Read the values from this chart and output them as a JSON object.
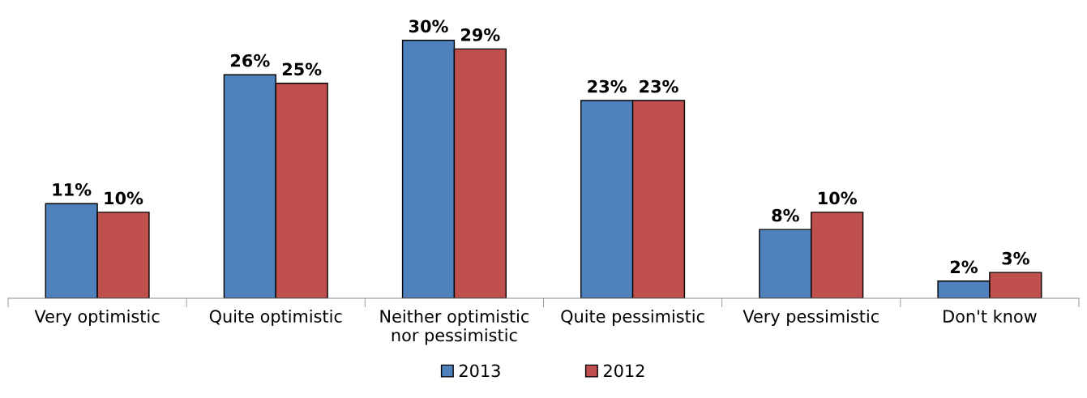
{
  "chart_data": {
    "type": "bar",
    "categories": [
      "Very optimistic",
      "Quite optimistic",
      "Neither optimistic\nnor pessimistic",
      "Quite pessimistic",
      "Very pessimistic",
      "Don't know"
    ],
    "series": [
      {
        "name": "2013",
        "color": "#4f81bd",
        "values": [
          11,
          26,
          30,
          23,
          8,
          2
        ],
        "value_labels": [
          "11%",
          "26%",
          "30%",
          "23%",
          "8%",
          "2%"
        ]
      },
      {
        "name": "2012",
        "color": "#c0504d",
        "values": [
          10,
          25,
          29,
          23,
          10,
          3
        ],
        "value_labels": [
          "10%",
          "25%",
          "29%",
          "23%",
          "10%",
          "3%"
        ]
      }
    ],
    "legend": "bottom",
    "grid": false
  }
}
